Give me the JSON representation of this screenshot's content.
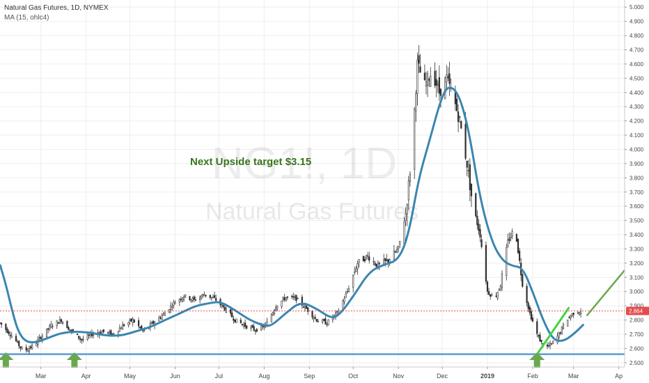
{
  "header": {
    "symbol_title": "Natural Gas Futures, 1D, NYMEX",
    "study": "MA (15, ohlc4)"
  },
  "watermark": {
    "symbol": "NG1!, 1D",
    "name": "Natural Gas Futures"
  },
  "colors": {
    "up_candle": "#2f2f2f",
    "down_candle": "#2f2f2f",
    "ma_line": "#3a86b0",
    "support_line": "#5b9bd5",
    "arrow": "#6aa84f",
    "trend_up": "#41d441",
    "projection": "#6aa84f",
    "price_badge": "#e44c4c",
    "annotation": "#38761d"
  },
  "chart_data": {
    "type": "line",
    "y_axis": {
      "ticks": [
        "2.500",
        "2.600",
        "2.700",
        "2.800",
        "2.900",
        "3.000",
        "3.100",
        "3.200",
        "3.300",
        "3.400",
        "3.500",
        "3.600",
        "3.700",
        "3.800",
        "3.900",
        "4.000",
        "4.100",
        "4.200",
        "4.300",
        "4.400",
        "4.500",
        "4.600",
        "4.700",
        "4.800",
        "4.900",
        "5.000"
      ],
      "range": [
        2.47,
        5.05
      ]
    },
    "x_axis": {
      "ticks": [
        "Mar",
        "Apr",
        "May",
        "Jun",
        "Jul",
        "Aug",
        "Sep",
        "Oct",
        "Nov",
        "Dec",
        "2019",
        "Feb",
        "Mar",
        "Ap"
      ],
      "range": [
        "2018-02-01",
        "2019-04-05"
      ]
    },
    "series": [
      {
        "kind": "price",
        "points": [
          [
            "2018-02-01",
            2.78
          ],
          [
            "2018-02-10",
            2.68
          ],
          [
            "2018-02-17",
            2.58
          ],
          [
            "2018-02-24",
            2.62
          ],
          [
            "2018-03-01",
            2.68
          ],
          [
            "2018-03-08",
            2.76
          ],
          [
            "2018-03-15",
            2.8
          ],
          [
            "2018-03-22",
            2.72
          ],
          [
            "2018-03-29",
            2.66
          ],
          [
            "2018-04-05",
            2.7
          ],
          [
            "2018-04-12",
            2.72
          ],
          [
            "2018-04-19",
            2.7
          ],
          [
            "2018-04-26",
            2.76
          ],
          [
            "2018-05-03",
            2.8
          ],
          [
            "2018-05-10",
            2.72
          ],
          [
            "2018-05-17",
            2.78
          ],
          [
            "2018-05-24",
            2.84
          ],
          [
            "2018-05-31",
            2.92
          ],
          [
            "2018-06-07",
            2.97
          ],
          [
            "2018-06-14",
            2.94
          ],
          [
            "2018-06-21",
            2.98
          ],
          [
            "2018-06-28",
            2.95
          ],
          [
            "2018-07-05",
            2.88
          ],
          [
            "2018-07-12",
            2.8
          ],
          [
            "2018-07-19",
            2.76
          ],
          [
            "2018-07-26",
            2.73
          ],
          [
            "2018-08-02",
            2.76
          ],
          [
            "2018-08-09",
            2.9
          ],
          [
            "2018-08-16",
            2.96
          ],
          [
            "2018-08-23",
            2.95
          ],
          [
            "2018-08-30",
            2.88
          ],
          [
            "2018-09-06",
            2.8
          ],
          [
            "2018-09-13",
            2.78
          ],
          [
            "2018-09-20",
            2.85
          ],
          [
            "2018-09-27",
            3.0
          ],
          [
            "2018-10-04",
            3.2
          ],
          [
            "2018-10-11",
            3.25
          ],
          [
            "2018-10-18",
            3.18
          ],
          [
            "2018-10-25",
            3.22
          ],
          [
            "2018-11-01",
            3.3
          ],
          [
            "2018-11-06",
            3.55
          ],
          [
            "2018-11-10",
            3.95
          ],
          [
            "2018-11-14",
            4.6
          ],
          [
            "2018-11-19",
            4.45
          ],
          [
            "2018-11-24",
            4.55
          ],
          [
            "2018-11-29",
            4.4
          ],
          [
            "2018-12-04",
            4.5
          ],
          [
            "2018-12-09",
            4.35
          ],
          [
            "2018-12-13",
            4.2
          ],
          [
            "2018-12-18",
            3.9
          ],
          [
            "2018-12-22",
            3.6
          ],
          [
            "2018-12-27",
            3.4
          ],
          [
            "2019-01-01",
            3.0
          ],
          [
            "2019-01-06",
            2.95
          ],
          [
            "2019-01-10",
            3.05
          ],
          [
            "2019-01-15",
            3.35
          ],
          [
            "2019-01-20",
            3.45
          ],
          [
            "2019-01-25",
            3.05
          ],
          [
            "2019-01-30",
            2.85
          ],
          [
            "2019-02-04",
            2.7
          ],
          [
            "2019-02-09",
            2.6
          ],
          [
            "2019-02-14",
            2.63
          ],
          [
            "2019-02-19",
            2.7
          ],
          [
            "2019-02-24",
            2.8
          ],
          [
            "2019-03-01",
            2.85
          ],
          [
            "2019-03-06",
            2.864
          ]
        ]
      },
      {
        "kind": "moving_average",
        "points": [
          [
            "2018-02-01",
            3.19
          ],
          [
            "2018-02-05",
            3.05
          ],
          [
            "2018-02-09",
            2.88
          ],
          [
            "2018-02-13",
            2.73
          ],
          [
            "2018-02-18",
            2.65
          ],
          [
            "2018-02-25",
            2.64
          ],
          [
            "2018-03-05",
            2.67
          ],
          [
            "2018-03-15",
            2.71
          ],
          [
            "2018-03-25",
            2.72
          ],
          [
            "2018-04-05",
            2.71
          ],
          [
            "2018-04-15",
            2.69
          ],
          [
            "2018-04-25",
            2.69
          ],
          [
            "2018-05-05",
            2.72
          ],
          [
            "2018-05-15",
            2.75
          ],
          [
            "2018-05-25",
            2.8
          ],
          [
            "2018-06-05",
            2.85
          ],
          [
            "2018-06-15",
            2.9
          ],
          [
            "2018-06-25",
            2.92
          ],
          [
            "2018-07-02",
            2.93
          ],
          [
            "2018-07-12",
            2.87
          ],
          [
            "2018-07-22",
            2.8
          ],
          [
            "2018-08-01",
            2.76
          ],
          [
            "2018-08-06",
            2.76
          ],
          [
            "2018-08-16",
            2.85
          ],
          [
            "2018-08-26",
            2.93
          ],
          [
            "2018-09-06",
            2.88
          ],
          [
            "2018-09-16",
            2.81
          ],
          [
            "2018-09-22",
            2.84
          ],
          [
            "2018-10-02",
            2.98
          ],
          [
            "2018-10-12",
            3.14
          ],
          [
            "2018-10-22",
            3.19
          ],
          [
            "2018-11-01",
            3.22
          ],
          [
            "2018-11-08",
            3.4
          ],
          [
            "2018-11-15",
            3.8
          ],
          [
            "2018-11-22",
            4.05
          ],
          [
            "2018-11-30",
            4.35
          ],
          [
            "2018-12-05",
            4.45
          ],
          [
            "2018-12-12",
            4.4
          ],
          [
            "2018-12-19",
            4.15
          ],
          [
            "2018-12-27",
            3.65
          ],
          [
            "2019-01-04",
            3.35
          ],
          [
            "2019-01-11",
            3.22
          ],
          [
            "2019-01-18",
            3.18
          ],
          [
            "2019-01-25",
            3.17
          ],
          [
            "2019-02-01",
            3.0
          ],
          [
            "2019-02-08",
            2.8
          ],
          [
            "2019-02-15",
            2.66
          ],
          [
            "2019-02-22",
            2.65
          ],
          [
            "2019-03-01",
            2.7
          ],
          [
            "2019-03-08",
            2.77
          ]
        ]
      }
    ],
    "last_price": "2.864"
  },
  "annotations": {
    "target_text": "Next Upside target $3.15",
    "support_level": 2.56,
    "arrows_at": [
      "2018-02-05",
      "2018-03-24",
      "2019-02-04"
    ],
    "trend_up_from": [
      "2019-02-04",
      2.56
    ],
    "trend_up_to": [
      "2019-02-26",
      2.89
    ],
    "projection_from": [
      "2019-03-10",
      2.83
    ],
    "projection_to": [
      "2019-04-05",
      3.15
    ]
  }
}
